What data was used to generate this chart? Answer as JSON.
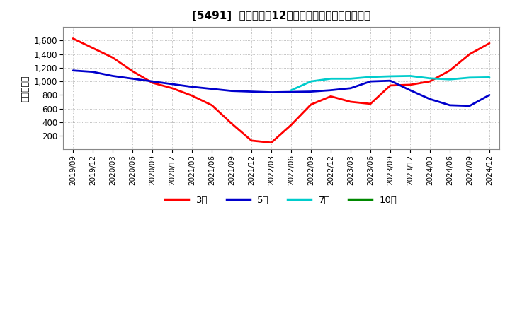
{
  "title": "[5491]  当期純利益12か月移動合計の平均値の推移",
  "ylabel": "（百万円）",
  "background_color": "#ffffff",
  "plot_bg_color": "#ffffff",
  "grid_color": "#aaaaaa",
  "ylim": [
    0,
    1800
  ],
  "yticks": [
    200,
    400,
    600,
    800,
    1000,
    1200,
    1400,
    1600
  ],
  "x_labels": [
    "2019/09",
    "2019/12",
    "2020/03",
    "2020/06",
    "2020/09",
    "2020/12",
    "2021/03",
    "2021/06",
    "2021/09",
    "2021/12",
    "2022/03",
    "2022/06",
    "2022/09",
    "2022/12",
    "2023/03",
    "2023/06",
    "2023/09",
    "2023/12",
    "2024/03",
    "2024/06",
    "2024/09",
    "2024/12"
  ],
  "series": {
    "3年": {
      "color": "#ff0000",
      "linewidth": 2.0,
      "values": [
        1630,
        1490,
        1350,
        1150,
        980,
        900,
        790,
        650,
        380,
        130,
        100,
        360,
        660,
        780,
        700,
        670,
        940,
        950,
        1000,
        1160,
        1400,
        1560
      ]
    },
    "5年": {
      "color": "#0000cc",
      "linewidth": 2.0,
      "values": [
        1160,
        1140,
        1080,
        1040,
        1000,
        960,
        920,
        890,
        860,
        850,
        840,
        845,
        850,
        870,
        900,
        1000,
        1010,
        870,
        740,
        650,
        640,
        800
      ]
    },
    "7年": {
      "color": "#00cccc",
      "linewidth": 2.0,
      "values": [
        null,
        null,
        null,
        null,
        null,
        null,
        null,
        null,
        null,
        null,
        null,
        870,
        1000,
        1040,
        1040,
        1065,
        1075,
        1080,
        1045,
        1030,
        1055,
        1060
      ]
    },
    "10年": {
      "color": "#008800",
      "linewidth": 2.0,
      "values": [
        null,
        null,
        null,
        null,
        null,
        null,
        null,
        null,
        null,
        null,
        null,
        null,
        null,
        null,
        null,
        null,
        null,
        null,
        null,
        null,
        null,
        null
      ]
    }
  },
  "legend_labels": [
    "3年",
    "5年",
    "7年",
    "10年"
  ],
  "legend_display": [
    "3年",
    "5年",
    "7年",
    "10年"
  ],
  "legend_colors": [
    "#ff0000",
    "#0000cc",
    "#00cccc",
    "#008800"
  ]
}
